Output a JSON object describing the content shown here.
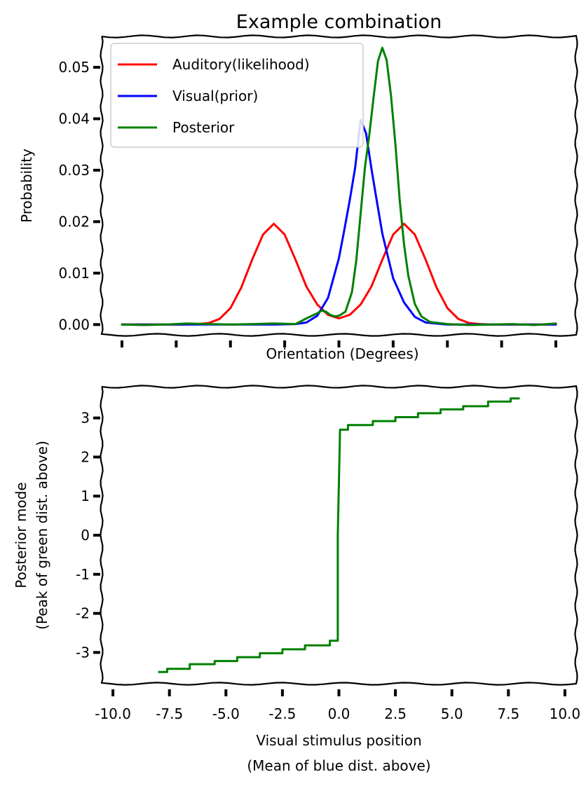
{
  "chart_data": [
    {
      "type": "line",
      "title": "Example combination",
      "xlabel": "Orientation (Degrees)",
      "ylabel": "Probability",
      "xlim": [
        -10,
        10
      ],
      "ylim": [
        -0.002,
        0.056
      ],
      "x_ticks": [
        -10,
        -7.5,
        -5,
        -2.5,
        0,
        2.5,
        5,
        7.5,
        10
      ],
      "x_tick_labels_visible": false,
      "y_ticks": [
        0.0,
        0.01,
        0.02,
        0.03,
        0.04,
        0.05
      ],
      "y_tick_labels": [
        "0.00",
        "0.01",
        "0.02",
        "0.03",
        "0.04",
        "0.05"
      ],
      "grid": false,
      "legend": "top-left",
      "series": [
        {
          "name": "Auditory(likelihood)",
          "color": "#ff0000",
          "x": [
            -10,
            -9,
            -8,
            -7,
            -6.5,
            -6,
            -5.5,
            -5,
            -4.5,
            -4,
            -3.5,
            -3,
            -2.5,
            -2,
            -1.5,
            -1,
            -0.5,
            0,
            0.5,
            1,
            1.5,
            2,
            2.5,
            3,
            3.5,
            4,
            4.5,
            5,
            5.5,
            6,
            6.5,
            7,
            8,
            9,
            10
          ],
          "y": [
            0,
            0,
            0,
            0,
            0.0001,
            0.0003,
            0.0011,
            0.0032,
            0.0072,
            0.0126,
            0.0175,
            0.0196,
            0.0175,
            0.0126,
            0.0074,
            0.0039,
            0.0019,
            0.0012,
            0.0019,
            0.0039,
            0.0074,
            0.0126,
            0.0175,
            0.0196,
            0.0175,
            0.0126,
            0.0072,
            0.0032,
            0.0011,
            0.0003,
            0.0001,
            0,
            0,
            0,
            0
          ]
        },
        {
          "name": "Visual(prior)",
          "color": "#0000ff",
          "x": [
            -10,
            -3,
            -2,
            -1.5,
            -1,
            -0.5,
            0,
            0.25,
            0.5,
            0.75,
            1,
            1.25,
            1.5,
            1.75,
            2,
            2.5,
            3,
            3.5,
            4,
            5,
            10
          ],
          "y": [
            0,
            0,
            0.0001,
            0.0004,
            0.0017,
            0.0052,
            0.0129,
            0.0184,
            0.0242,
            0.0305,
            0.0398,
            0.0372,
            0.0303,
            0.0239,
            0.0177,
            0.009,
            0.0043,
            0.0015,
            0.0004,
            0,
            0
          ]
        },
        {
          "name": "Posterior",
          "color": "#008000",
          "x": [
            -10,
            -9,
            -8,
            -7,
            -6,
            -5,
            -4,
            -3,
            -2,
            -1.5,
            -1.2,
            -1,
            -0.8,
            -0.6,
            -0.4,
            -0.2,
            0,
            0.3,
            0.6,
            0.8,
            1,
            1.2,
            1.4,
            1.6,
            1.8,
            2,
            2.2,
            2.4,
            2.6,
            2.8,
            3,
            3.2,
            3.5,
            3.8,
            4.2,
            5,
            6,
            7,
            8,
            9,
            10
          ],
          "y": [
            0,
            -0.0001,
            0,
            0.0002,
            0.0001,
            0,
            0.0001,
            0.0002,
            0.0001,
            0.0012,
            0.0018,
            0.0022,
            0.0027,
            0.0025,
            0.0019,
            0.0016,
            0.0017,
            0.0025,
            0.0063,
            0.0125,
            0.0216,
            0.0305,
            0.0368,
            0.0442,
            0.0512,
            0.0538,
            0.0514,
            0.0445,
            0.0352,
            0.0242,
            0.0156,
            0.0095,
            0.004,
            0.0016,
            0.0005,
            0.0001,
            -0.0001,
            0,
            0.0001,
            -0.0001,
            0.0002
          ]
        }
      ]
    },
    {
      "type": "line",
      "xlabel_lines": [
        "Visual stimulus position",
        "(Mean of blue dist. above)"
      ],
      "ylabel_lines": [
        "Posterior mode",
        "(Peak of green dist. above)"
      ],
      "xlim": [
        -10.5,
        10.5
      ],
      "ylim": [
        -3.8,
        3.8
      ],
      "x_ticks": [
        -10,
        -7.5,
        -5,
        -2.5,
        0,
        2.5,
        5,
        7.5,
        10
      ],
      "x_tick_labels": [
        "-10.0",
        "-7.5",
        "-5.0",
        "-2.5",
        "0.0",
        "2.5",
        "5.0",
        "7.5",
        "10.0"
      ],
      "y_ticks": [
        -3,
        -2,
        -1,
        0,
        1,
        2,
        3
      ],
      "y_tick_labels": [
        "-3",
        "-2",
        "-1",
        "0",
        "1",
        "2",
        "3"
      ],
      "grid": false,
      "series": [
        {
          "color": "#008000",
          "x": [
            -8,
            -7.6,
            -7.6,
            -6.6,
            -6.6,
            -5.5,
            -5.5,
            -4.5,
            -4.5,
            -3.5,
            -3.5,
            -2.5,
            -2.5,
            -1.5,
            -1.5,
            -0.4,
            -0.4,
            -0.05,
            -0.05,
            0.05,
            0.05,
            0.4,
            0.4,
            1.5,
            1.5,
            2.5,
            2.5,
            3.5,
            3.5,
            4.5,
            4.5,
            5.5,
            5.5,
            6.6,
            6.6,
            7.6,
            7.6,
            8
          ],
          "y": [
            -3.5,
            -3.5,
            -3.42,
            -3.42,
            -3.3,
            -3.3,
            -3.22,
            -3.22,
            -3.12,
            -3.12,
            -3.02,
            -3.02,
            -2.92,
            -2.92,
            -2.82,
            -2.82,
            -2.7,
            -2.7,
            0,
            2.7,
            2.7,
            2.7,
            2.82,
            2.82,
            2.92,
            2.92,
            3.02,
            3.02,
            3.12,
            3.12,
            3.22,
            3.22,
            3.3,
            3.3,
            3.42,
            3.42,
            3.5,
            3.5
          ]
        }
      ]
    }
  ]
}
